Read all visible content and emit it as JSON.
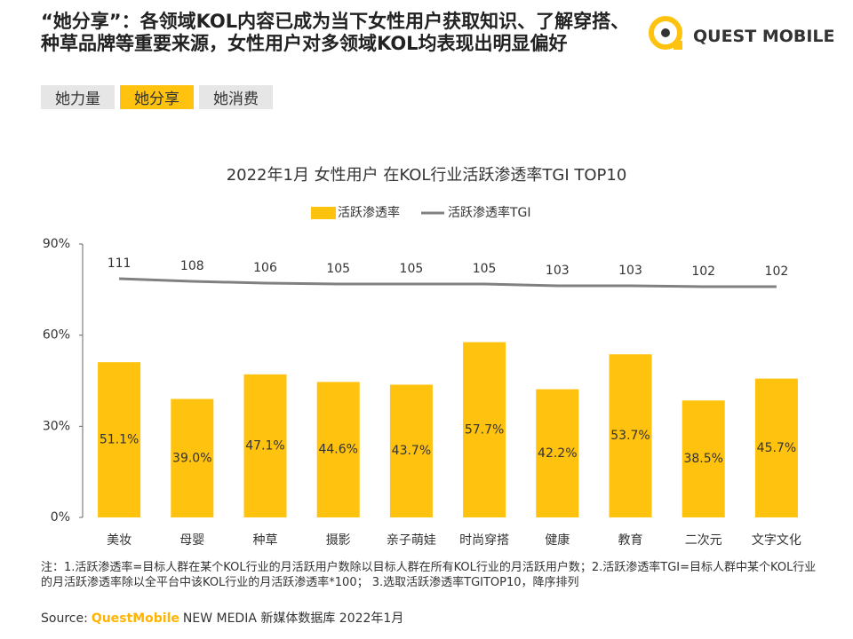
{
  "header": {
    "title": "“她分享”：各领域KOL内容已成为当下女性用户获取知识、了解穿搭、种草品牌等重要来源，女性用户对多领域KOL均表现出明显偏好",
    "logo": "QUEST MOBILE",
    "tabs": [
      "她力量",
      "她分享",
      "她消费"
    ],
    "active_tab": 1
  },
  "chart_data": {
    "type": "bar",
    "title": "2022年1月 女性用户 在KOL行业活跃渗透率TGI TOP10",
    "categories": [
      "美妆",
      "母婴",
      "种草",
      "摄影",
      "亲子萌娃",
      "时尚穿搭",
      "健康",
      "教育",
      "二次元",
      "文字文化"
    ],
    "series": [
      {
        "name": "活跃渗透率",
        "type": "bar",
        "color": "#FFC20E",
        "values": [
          51.1,
          39.0,
          47.1,
          44.6,
          43.7,
          57.7,
          42.2,
          53.7,
          38.5,
          45.7
        ],
        "value_labels": [
          "51.1%",
          "39.0%",
          "47.1%",
          "44.6%",
          "43.7%",
          "57.7%",
          "42.2%",
          "53.7%",
          "38.5%",
          "45.7%"
        ]
      },
      {
        "name": "活跃渗透率TGI",
        "type": "line",
        "axis": "y2",
        "color": "#808080",
        "values": [
          111,
          108,
          106,
          105,
          105,
          105,
          103,
          103,
          102,
          102
        ]
      }
    ],
    "ylim": [
      0,
      90
    ],
    "yticks": [
      {
        "value": 0,
        "label": "0%"
      },
      {
        "value": 30,
        "label": "30%"
      },
      {
        "value": 60,
        "label": "60%"
      },
      {
        "value": 90,
        "label": "90%"
      }
    ],
    "y2lim": [
      -158,
      150
    ],
    "legend": "top"
  },
  "notes": [
    "注：1.活跃渗透率=目标人群在某个KOL行业的月活跃用户数除以目标人群在所有KOL行业的月活跃用户数；2.活跃渗透率TGI=目标人群中某个KOL行业的月活跃渗透率除以全平台中该KOL行业的月活跃渗透率*100； 3.选取活跃渗透率TGITOP10，降序排列"
  ],
  "source": {
    "label": "Source:",
    "brand": "QuestMobile",
    "text": "NEW MEDIA 新媒体数据库 2022年1月"
  }
}
